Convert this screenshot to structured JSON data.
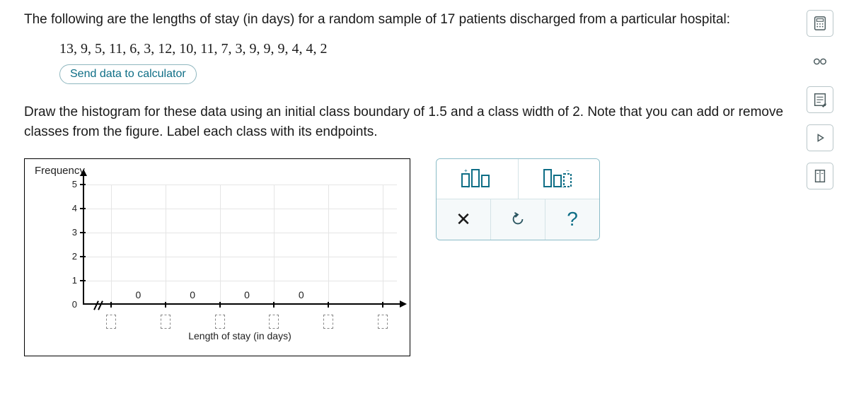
{
  "prompt_1": "The following are the lengths of stay (in days) for a random sample of 17 patients discharged from a particular hospital:",
  "data_string": "13, 9, 5, 11, 6, 3, 12, 10, 11, 7, 3, 9, 9, 9, 4, 4, 2",
  "send_label": "Send data to calculator",
  "prompt_2": "Draw the histogram for these data using an initial class boundary of 1.5 and a class width of 2. Note that you can add or remove classes from the figure. Label each class with its endpoints.",
  "chart": {
    "y_label": "Frequency",
    "x_label": "Length of stay (in days)",
    "y_ticks": [
      "0",
      "1",
      "2",
      "3",
      "4",
      "5"
    ],
    "y_max": 5,
    "bar_labels": [
      "0",
      "0",
      "0",
      "0"
    ],
    "box_count": 5,
    "colors": {
      "grid": "#e5e5e5",
      "axis": "#000000",
      "panel_border": "#8bbcc8",
      "tool_accent": "#0e6e86"
    }
  },
  "toolbar": {
    "clear_label": "×",
    "reset_label": "↺",
    "help_label": "?"
  }
}
